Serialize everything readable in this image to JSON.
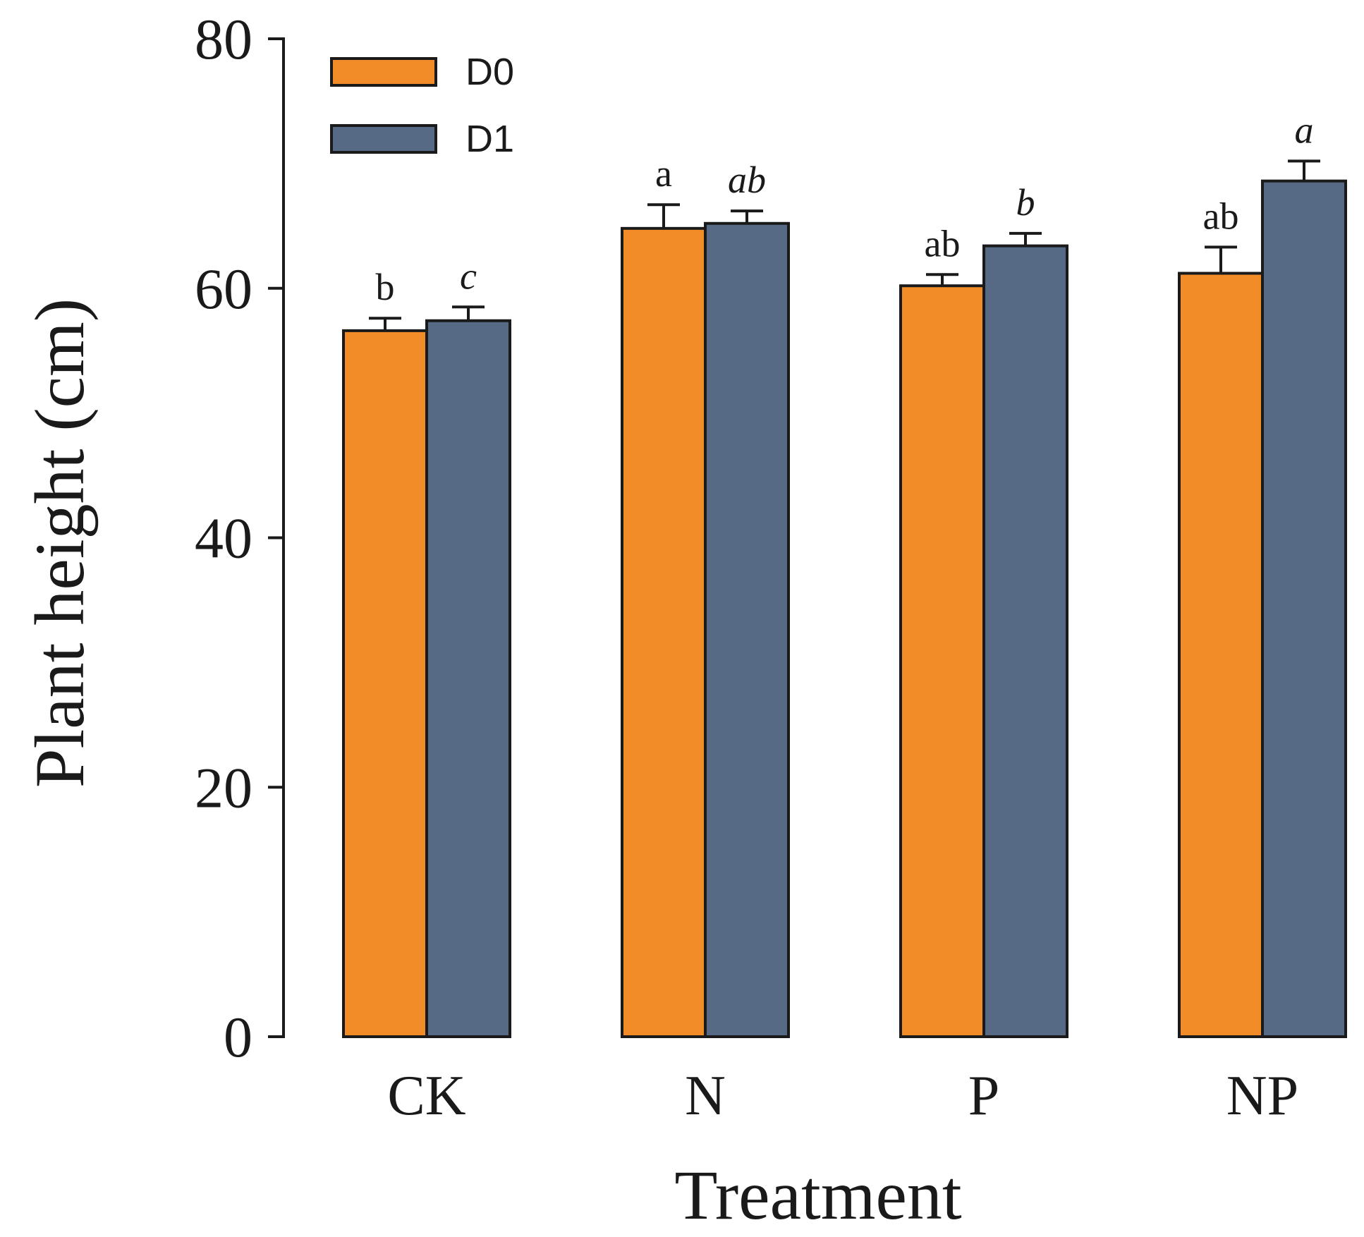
{
  "chart_data": {
    "type": "bar",
    "title": "",
    "xlabel": "Treatment",
    "ylabel": "Plant height (cm)",
    "ylim": [
      0,
      80
    ],
    "yticks": [
      0,
      20,
      40,
      60,
      80
    ],
    "categories": [
      "CK",
      "N",
      "P",
      "NP"
    ],
    "legend_position": "top-left",
    "series": [
      {
        "name": "D0",
        "color": "#f28c28",
        "values": [
          56.6,
          64.8,
          60.2,
          61.2
        ],
        "errors": [
          1.0,
          1.9,
          0.9,
          2.1
        ],
        "significance": [
          "b",
          "a",
          "ab",
          "ab"
        ],
        "italic": false
      },
      {
        "name": "D1",
        "color": "#566985",
        "values": [
          57.4,
          65.2,
          63.4,
          68.6
        ],
        "errors": [
          1.1,
          1.0,
          1.0,
          1.6
        ],
        "significance": [
          "c",
          "ab",
          "b",
          "a"
        ],
        "italic": true
      }
    ]
  }
}
